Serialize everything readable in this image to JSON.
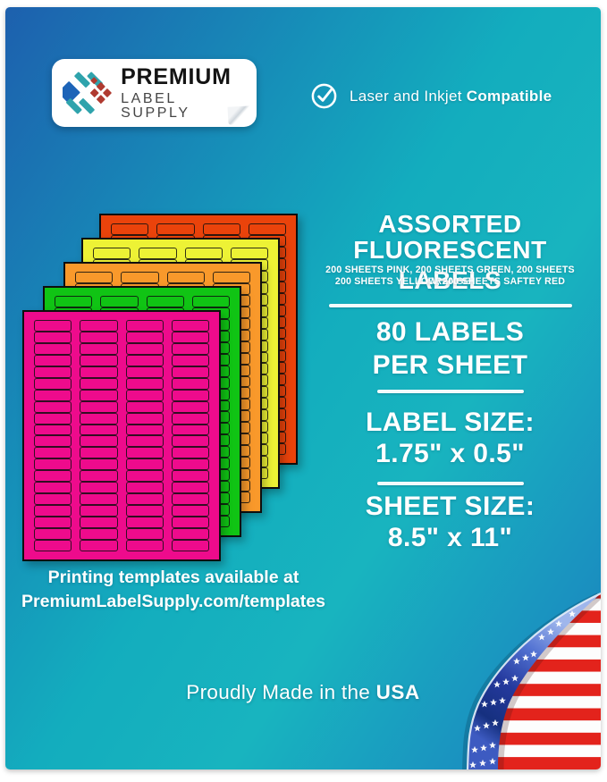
{
  "page": {
    "bg_top_left": "#1d60ae",
    "bg_mid_teal": "#13adbe",
    "bg_bottom_right": "#1b7cbb",
    "frame_color": "#ffffff"
  },
  "logo": {
    "line1": "PREMIUM",
    "line2": "LABEL SUPPLY",
    "icon_blue": "#1d64b8",
    "icon_teal": "#2fa3ac",
    "icon_red": "#b03a30"
  },
  "compat": {
    "prefix": "Laser and Inkjet ",
    "bold": "Compatible"
  },
  "headline": {
    "line1": "ASSORTED",
    "line2": "FLUORESCENT LABELS",
    "sub1": "200 SHEETS PINK, 200 SHEETS GREEN, 200 SHEETS ORANGE,",
    "sub2": "200 SHEETS YELLOW, 200 SHEETS SAFTEY RED"
  },
  "specs": {
    "count_line1": "80 LABELS",
    "count_line2": "PER SHEET",
    "label_size_title": "LABEL SIZE:",
    "label_size_value": "1.75\" x 0.5\"",
    "sheet_size_title": "SHEET SIZE:",
    "sheet_size_value": "8.5\" x 11\""
  },
  "sheets": {
    "columns": 4,
    "rows": 20,
    "labels_per_sheet": 80,
    "stack": [
      {
        "name": "safety-red",
        "color": "#ea430b"
      },
      {
        "name": "yellow",
        "color": "#edf235"
      },
      {
        "name": "orange",
        "color": "#f9992b"
      },
      {
        "name": "green",
        "color": "#10c414"
      },
      {
        "name": "pink",
        "color": "#ee0b8c"
      }
    ]
  },
  "templates_note": {
    "line1": "Printing templates available at",
    "line2": "PremiumLabelSupply.com/templates"
  },
  "footer": {
    "prefix": "Proudly Made in the ",
    "bold": "USA"
  },
  "flag": {
    "stripe_red": "#e3231c",
    "stripe_white": "#fdfdfd",
    "field_blue_dark": "#16307f",
    "field_blue_light": "#9fb6ec"
  }
}
